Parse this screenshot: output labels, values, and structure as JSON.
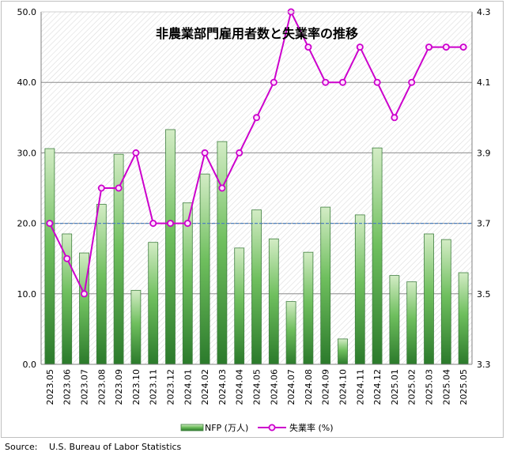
{
  "chart_data": {
    "type": "bar+line",
    "title": "非農業部門雇用者数と失業率の推移",
    "categories": [
      "2023.05",
      "2023.06",
      "2023.07",
      "2023.08",
      "2023.09",
      "2023.10",
      "2023.11",
      "2023.12",
      "2024.01",
      "2024.02",
      "2024.03",
      "2024.04",
      "2024.05",
      "2024.06",
      "2024.07",
      "2024.08",
      "2024.09",
      "2024.10",
      "2024.11",
      "2024.12",
      "2025.01",
      "2025.02",
      "2025.03",
      "2025.04",
      "2025.05"
    ],
    "series": [
      {
        "name": "NFP (万人)",
        "type": "bar",
        "axis": "left",
        "color": "#3a8f3a",
        "values": [
          30.6,
          18.5,
          15.8,
          22.7,
          29.8,
          10.5,
          17.3,
          33.3,
          22.9,
          27.0,
          31.6,
          16.5,
          21.9,
          17.8,
          8.9,
          15.9,
          22.3,
          3.6,
          21.2,
          30.7,
          12.6,
          11.7,
          18.5,
          17.7,
          13.0
        ]
      },
      {
        "name": "失業率 (%)",
        "type": "line",
        "axis": "right",
        "color": "#cc00cc",
        "values": [
          3.7,
          3.6,
          3.5,
          3.8,
          3.8,
          3.9,
          3.7,
          3.7,
          3.7,
          3.9,
          3.8,
          3.9,
          4.0,
          4.1,
          4.3,
          4.2,
          4.1,
          4.1,
          4.2,
          4.1,
          4.0,
          4.1,
          4.2,
          4.2,
          4.2
        ]
      }
    ],
    "y_left": {
      "min": 0,
      "max": 50,
      "ticks": [
        "0.0",
        "10.0",
        "20.0",
        "30.0",
        "40.0",
        "50.0"
      ]
    },
    "y_right": {
      "min": 3.3,
      "max": 4.3,
      "ticks": [
        "3.3",
        "3.5",
        "3.7",
        "3.9",
        "4.1",
        "4.3"
      ]
    },
    "reference_line": {
      "axis": "left",
      "value": 20,
      "style": "dashed",
      "color": "#4f81bd"
    },
    "grid": true,
    "legend_position": "bottom"
  },
  "source": {
    "label": "Source:",
    "text": "U.S. Bureau of Labor Statistics"
  }
}
